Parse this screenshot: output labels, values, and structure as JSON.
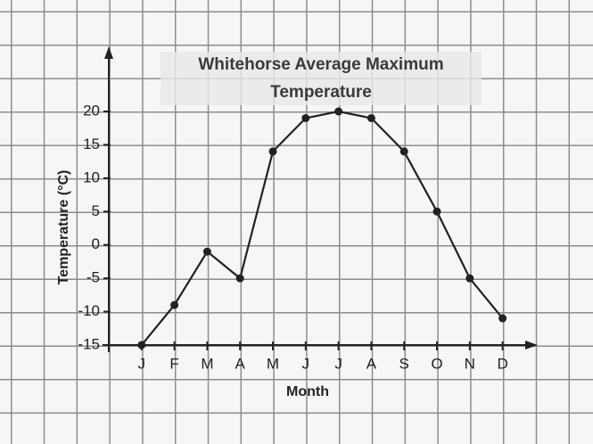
{
  "chart_data": {
    "type": "line",
    "title": [
      "Whitehorse Average Maximum",
      "Temperature"
    ],
    "xlabel": "Month",
    "ylabel": "Temperature (°C)",
    "categories": [
      "J",
      "F",
      "M",
      "A",
      "M",
      "J",
      "J",
      "A",
      "S",
      "O",
      "N",
      "D"
    ],
    "values": [
      -15,
      -9,
      -1,
      -5,
      14,
      19,
      20,
      19,
      14,
      5,
      -5,
      -11
    ],
    "color": "#222222",
    "ylim": [
      -15,
      20
    ],
    "yticks": [
      -15,
      -10,
      -5,
      0,
      5,
      10,
      15,
      20
    ],
    "grid": false
  }
}
